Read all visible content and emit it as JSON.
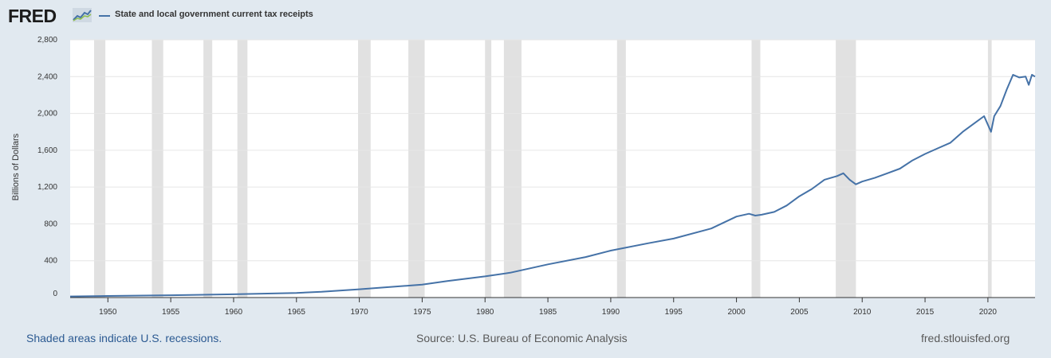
{
  "header": {
    "logo_text": "FRED",
    "logo_icon": "fred-line-graph-icon"
  },
  "colors": {
    "background": "#e1e9f0",
    "plot_background": "#ffffff",
    "series_line": "#4572a7",
    "recession_shade": "#e1e1e1",
    "gridline": "#e6e6e6",
    "link": "#2c5a92"
  },
  "footer": {
    "recession_note": "Shaded areas indicate U.S. recessions.",
    "source": "Source: U.S. Bureau of Economic Analysis",
    "site": "fred.stlouisfed.org"
  },
  "chart_data": {
    "type": "line",
    "title": "",
    "xlabel": "",
    "ylabel": "Billions of Dollars",
    "xlim": [
      1947.0,
      2023.75
    ],
    "ylim": [
      0,
      2800
    ],
    "grid": true,
    "legend_position": "top-left",
    "x_ticks": [
      1950,
      1955,
      1960,
      1965,
      1970,
      1975,
      1980,
      1985,
      1990,
      1995,
      2000,
      2005,
      2010,
      2015,
      2020
    ],
    "x_tick_labels": [
      "1950",
      "1955",
      "1960",
      "1965",
      "1970",
      "1975",
      "1980",
      "1985",
      "1990",
      "1995",
      "2000",
      "2005",
      "2010",
      "2015",
      "2020"
    ],
    "y_ticks": [
      0,
      400,
      800,
      1200,
      1600,
      2000,
      2400,
      2800
    ],
    "y_tick_labels": [
      "0",
      "400",
      "800",
      "1,200",
      "1,600",
      "2,000",
      "2,400",
      "2,800"
    ],
    "recessions": [
      [
        1948.9,
        1949.8
      ],
      [
        1953.5,
        1954.4
      ],
      [
        1957.6,
        1958.3
      ],
      [
        1960.3,
        1961.1
      ],
      [
        1969.9,
        1970.9
      ],
      [
        1973.9,
        1975.2
      ],
      [
        1980.0,
        1980.5
      ],
      [
        1981.5,
        1982.9
      ],
      [
        1990.5,
        1991.2
      ],
      [
        2001.2,
        2001.9
      ],
      [
        2007.9,
        2009.5
      ],
      [
        2020.0,
        2020.3
      ]
    ],
    "series": [
      {
        "name": "State and local government current tax receipts",
        "x": [
          1947.0,
          1950.0,
          1955.0,
          1960.0,
          1965.0,
          1967.0,
          1970.0,
          1972.0,
          1975.0,
          1977.0,
          1980.0,
          1982.0,
          1983.0,
          1985.0,
          1988.0,
          1990.0,
          1993.0,
          1995.0,
          1998.0,
          2000.0,
          2001.0,
          2001.5,
          2002.0,
          2003.0,
          2004.0,
          2005.0,
          2006.0,
          2007.0,
          2008.0,
          2008.5,
          2009.0,
          2009.5,
          2010.0,
          2011.0,
          2012.0,
          2013.0,
          2014.0,
          2015.0,
          2016.0,
          2017.0,
          2018.0,
          2019.0,
          2019.7,
          2020.25,
          2020.5,
          2021.0,
          2021.5,
          2022.0,
          2022.5,
          2023.0,
          2023.25,
          2023.5,
          2023.75
        ],
        "values": [
          12,
          17,
          25,
          35,
          50,
          62,
          90,
          110,
          140,
          180,
          230,
          270,
          300,
          360,
          440,
          510,
          590,
          640,
          750,
          880,
          910,
          890,
          900,
          930,
          1000,
          1100,
          1180,
          1280,
          1320,
          1350,
          1280,
          1230,
          1260,
          1300,
          1350,
          1400,
          1490,
          1560,
          1620,
          1680,
          1800,
          1900,
          1970,
          1800,
          1970,
          2080,
          2260,
          2420,
          2390,
          2400,
          2310,
          2420,
          2400
        ]
      }
    ]
  }
}
